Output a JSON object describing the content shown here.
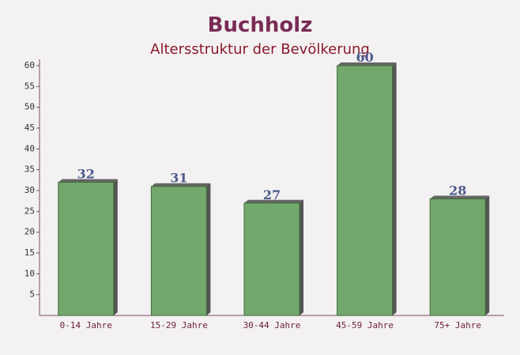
{
  "chart_data": {
    "type": "bar",
    "title": "Buchholz",
    "subtitle": "Altersstruktur der Bevölkerung",
    "categories": [
      "0-14 Jahre",
      "15-29 Jahre",
      "30-44 Jahre",
      "45-59 Jahre",
      "75+ Jahre"
    ],
    "values": [
      32,
      31,
      27,
      60,
      28
    ],
    "color": "#6aa364",
    "ylim": [
      0,
      60
    ],
    "yticks": [
      5,
      10,
      15,
      20,
      25,
      30,
      35,
      40,
      45,
      50,
      55,
      60
    ]
  }
}
